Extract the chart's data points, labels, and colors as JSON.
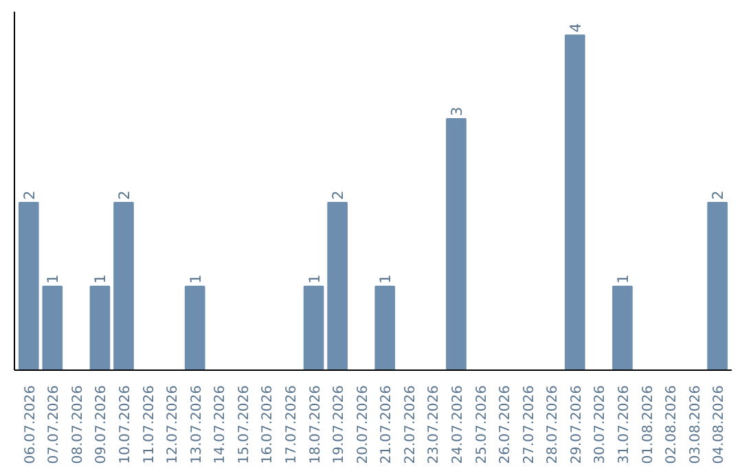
{
  "chart_data": {
    "type": "bar",
    "categories": [
      "06.07.2026",
      "07.07.2026",
      "08.07.2026",
      "09.07.2026",
      "10.07.2026",
      "11.07.2026",
      "12.07.2026",
      "13.07.2026",
      "14.07.2026",
      "15.07.2026",
      "16.07.2026",
      "17.07.2026",
      "18.07.2026",
      "19.07.2026",
      "20.07.2026",
      "21.07.2026",
      "22.07.2026",
      "23.07.2026",
      "24.07.2026",
      "25.07.2026",
      "26.07.2026",
      "27.07.2026",
      "28.07.2026",
      "29.07.2026",
      "30.07.2026",
      "31.07.2026",
      "01.08.2026",
      "02.08.2026",
      "03.08.2026",
      "04.08.2026"
    ],
    "values": [
      2,
      1,
      0,
      1,
      2,
      0,
      0,
      1,
      0,
      0,
      0,
      0,
      1,
      2,
      0,
      1,
      0,
      0,
      3,
      0,
      0,
      0,
      0,
      4,
      0,
      1,
      0,
      0,
      0,
      2
    ],
    "value_labels": [
      "2",
      "1",
      null,
      "1",
      "2",
      null,
      null,
      "1",
      null,
      null,
      null,
      null,
      "1",
      "2",
      null,
      "1",
      null,
      null,
      "3",
      null,
      null,
      null,
      null,
      "4",
      null,
      "1",
      null,
      null,
      null,
      "2"
    ],
    "color": "#6d8eae",
    "tick_labels": "x",
    "grid": false
  }
}
